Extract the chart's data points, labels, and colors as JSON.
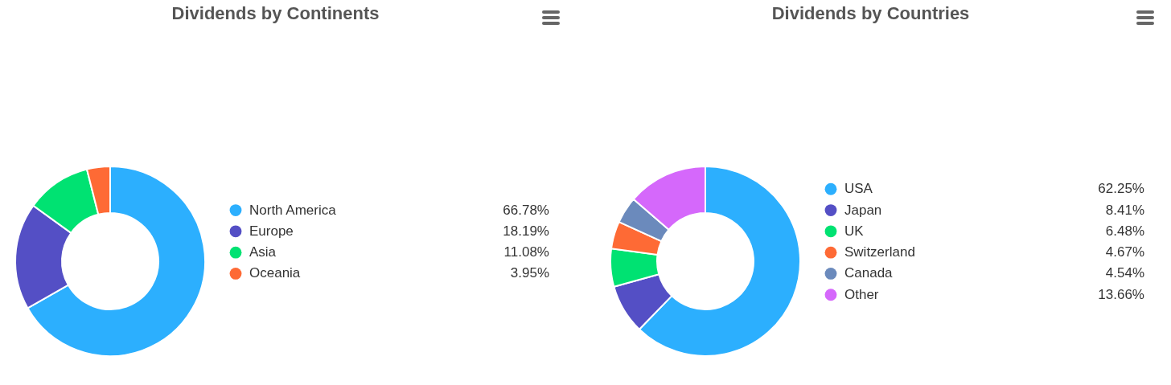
{
  "chart_data": [
    {
      "type": "donut",
      "title": "Dividends by Continents",
      "categories": [
        "North America",
        "Europe",
        "Asia",
        "Oceania"
      ],
      "values": [
        66.78,
        18.19,
        11.08,
        3.95
      ],
      "colors": [
        "#2caffe",
        "#544fc5",
        "#00e272",
        "#fe6a35"
      ],
      "value_labels": [
        "66.78%",
        "18.19%",
        "11.08%",
        "3.95%"
      ],
      "legend": "right"
    },
    {
      "type": "donut",
      "title": "Dividends by Countries",
      "categories": [
        "USA",
        "Japan",
        "UK",
        "Switzerland",
        "Canada",
        "Other"
      ],
      "values": [
        62.25,
        8.41,
        6.48,
        4.67,
        4.54,
        13.66
      ],
      "colors": [
        "#2caffe",
        "#544fc5",
        "#00e272",
        "#fe6a35",
        "#6b8abc",
        "#d568fb"
      ],
      "value_labels": [
        "62.25%",
        "8.41%",
        "6.48%",
        "4.67%",
        "4.54%",
        "13.66%"
      ],
      "legend": "right"
    }
  ]
}
